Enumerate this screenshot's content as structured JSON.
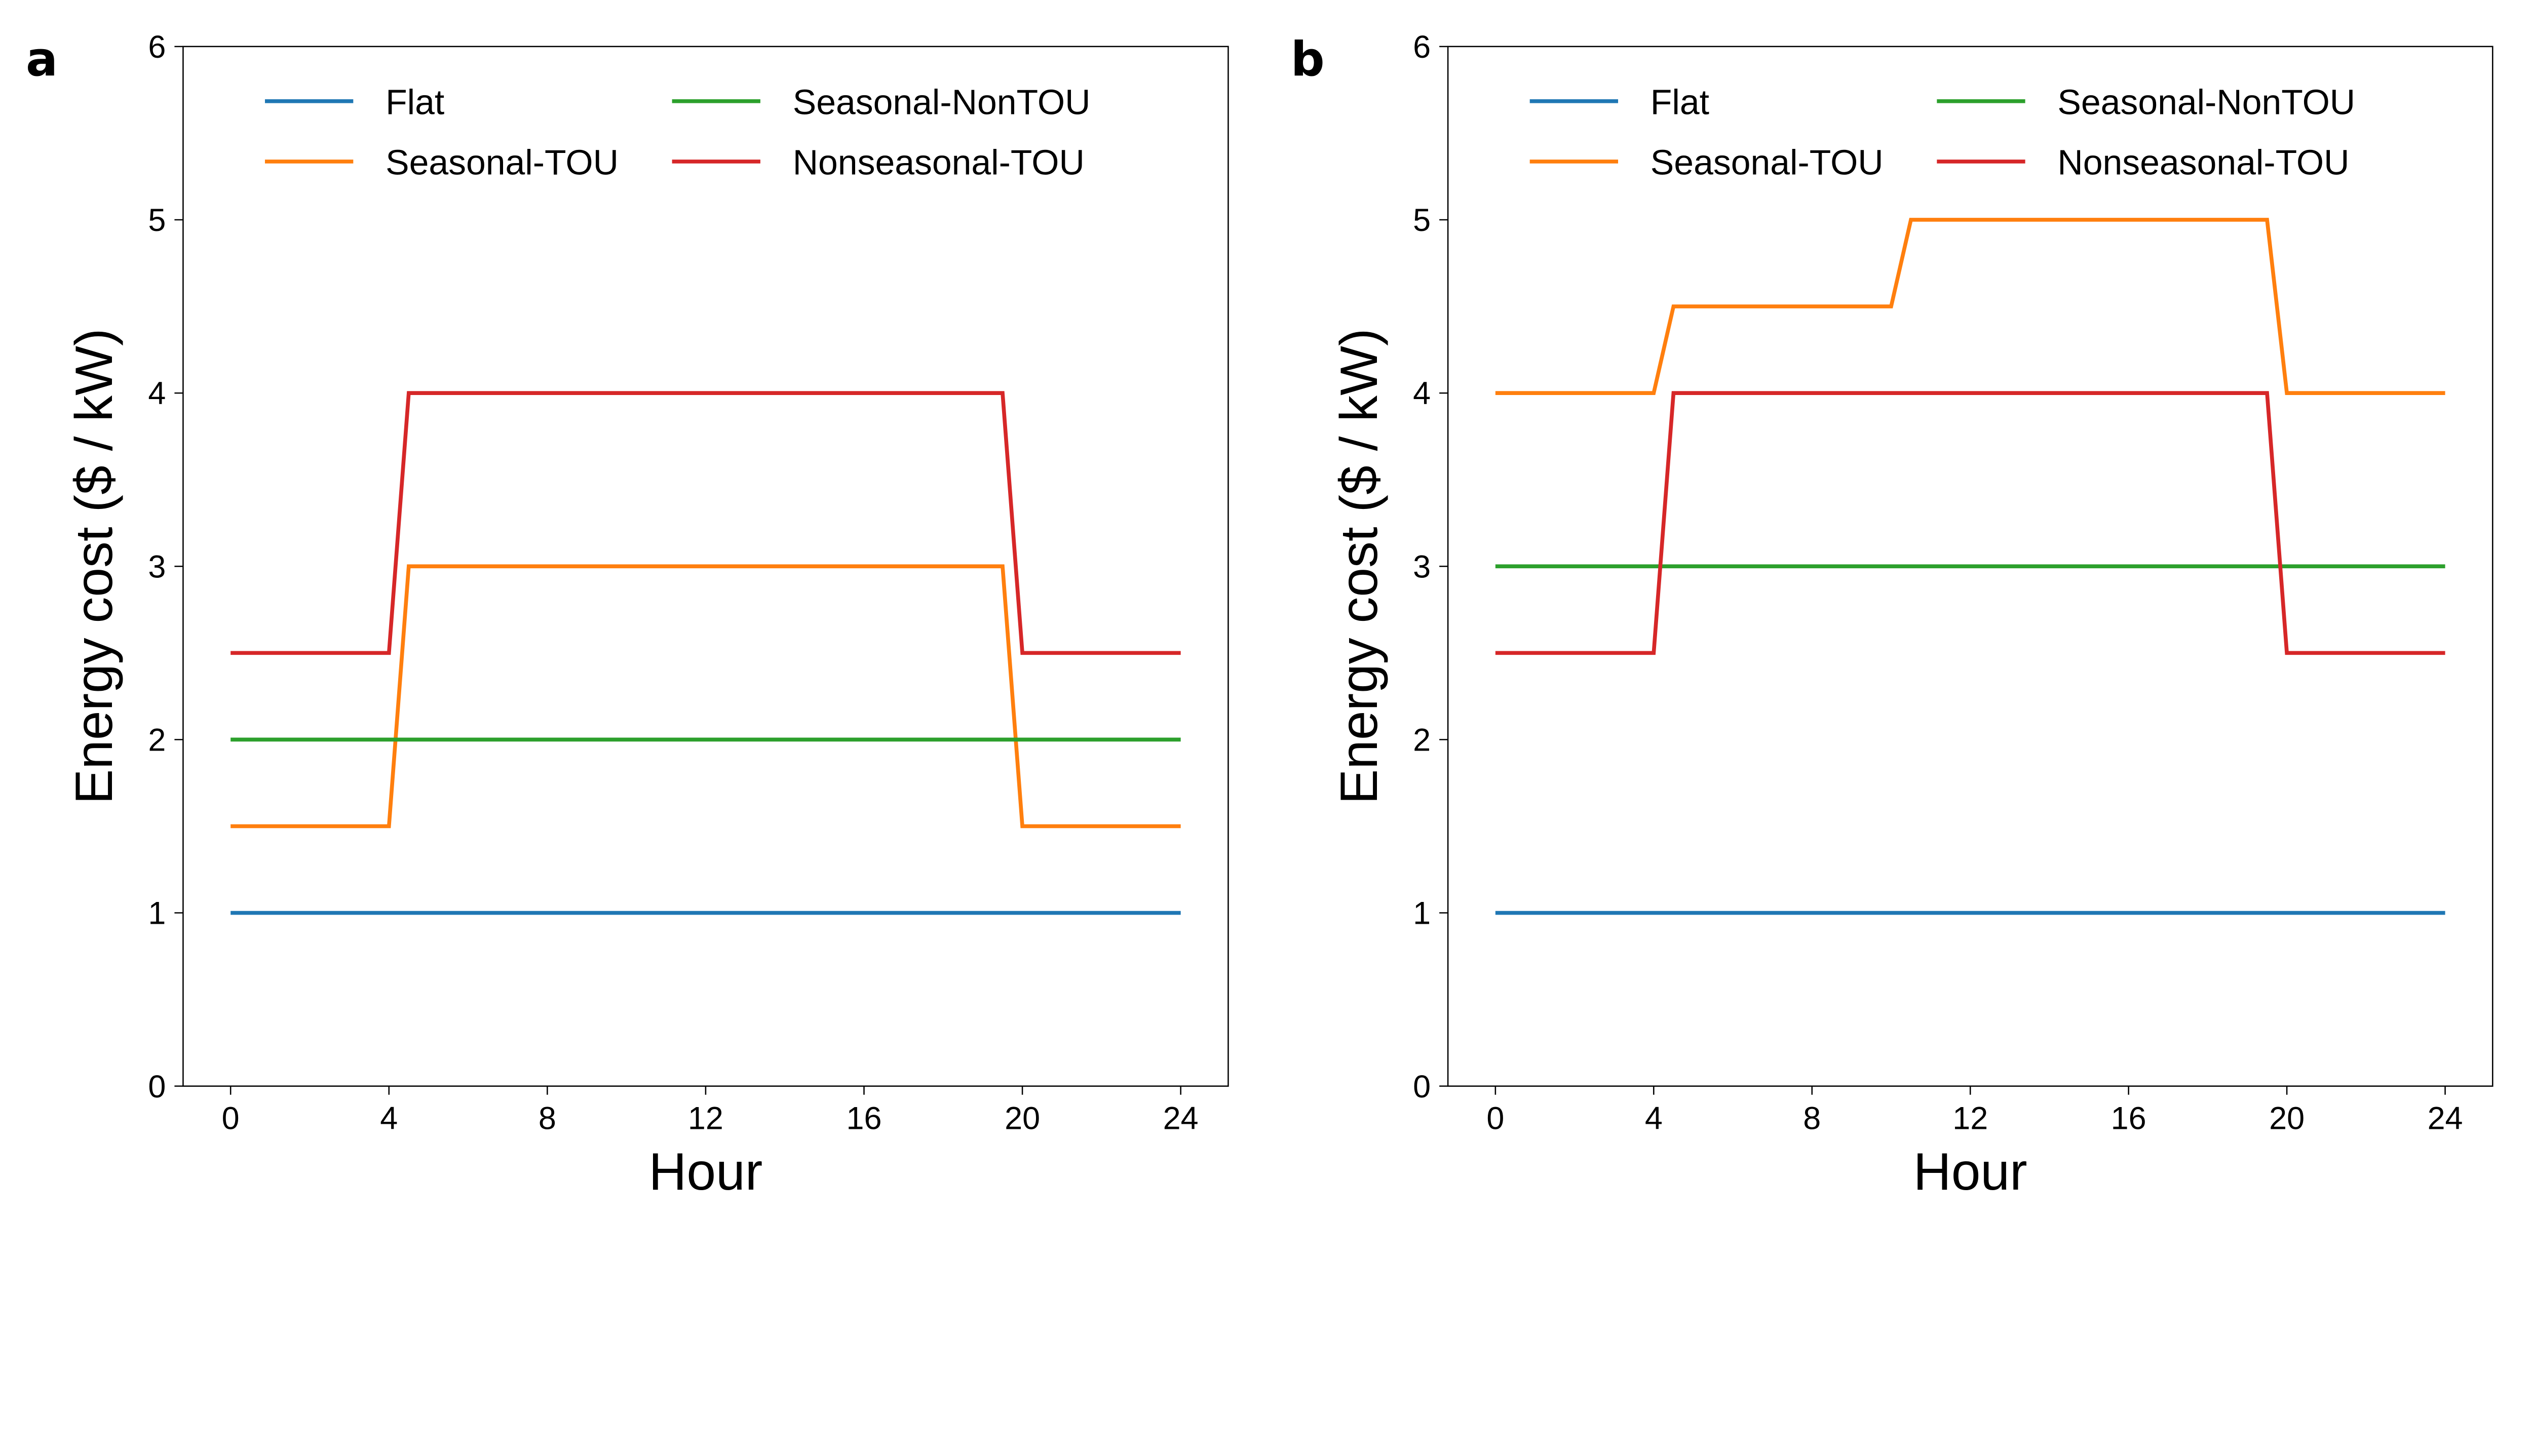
{
  "chart_data": [
    {
      "type": "line",
      "panel_label": "a",
      "xlabel": "Hour",
      "ylabel": "Energy cost ($ / kW)",
      "xlim": [
        -1.2,
        25.2
      ],
      "ylim": [
        0,
        6
      ],
      "xticks": [
        0,
        4,
        8,
        12,
        16,
        20,
        24
      ],
      "yticks": [
        0,
        1,
        2,
        3,
        4,
        5,
        6
      ],
      "grid": false,
      "legend_placement": "top-center",
      "legend_columns": 2,
      "series": [
        {
          "name": "Flat",
          "color": "#1f77b4",
          "x": [
            0,
            24
          ],
          "y": [
            1,
            1
          ]
        },
        {
          "name": "Seasonal-TOU",
          "color": "#ff7f0e",
          "x": [
            0,
            4,
            4.5,
            19.5,
            20,
            24
          ],
          "y": [
            1.5,
            1.5,
            3,
            3,
            1.5,
            1.5
          ]
        },
        {
          "name": "Seasonal-NonTOU",
          "color": "#2ca02c",
          "x": [
            0,
            24
          ],
          "y": [
            2,
            2
          ]
        },
        {
          "name": "Nonseasonal-TOU",
          "color": "#d62728",
          "x": [
            0,
            4,
            4.5,
            19.5,
            20,
            24
          ],
          "y": [
            2.5,
            2.5,
            4,
            4,
            2.5,
            2.5
          ]
        }
      ]
    },
    {
      "type": "line",
      "panel_label": "b",
      "xlabel": "Hour",
      "ylabel": "Energy cost ($ / kW)",
      "xlim": [
        -1.2,
        25.2
      ],
      "ylim": [
        0,
        6
      ],
      "xticks": [
        0,
        4,
        8,
        12,
        16,
        20,
        24
      ],
      "yticks": [
        0,
        1,
        2,
        3,
        4,
        5,
        6
      ],
      "grid": false,
      "legend_placement": "top-center",
      "legend_columns": 2,
      "series": [
        {
          "name": "Flat",
          "color": "#1f77b4",
          "x": [
            0,
            24
          ],
          "y": [
            1,
            1
          ]
        },
        {
          "name": "Seasonal-TOU",
          "color": "#ff7f0e",
          "x": [
            0,
            4,
            4.5,
            10,
            10.5,
            19.5,
            20,
            24
          ],
          "y": [
            4,
            4,
            4.5,
            4.5,
            5,
            5,
            4,
            4
          ]
        },
        {
          "name": "Seasonal-NonTOU",
          "color": "#2ca02c",
          "x": [
            0,
            24
          ],
          "y": [
            3,
            3
          ]
        },
        {
          "name": "Nonseasonal-TOU",
          "color": "#d62728",
          "x": [
            0,
            4,
            4.5,
            19.5,
            20,
            24
          ],
          "y": [
            2.5,
            2.5,
            4,
            4,
            2.5,
            2.5
          ]
        }
      ]
    }
  ]
}
